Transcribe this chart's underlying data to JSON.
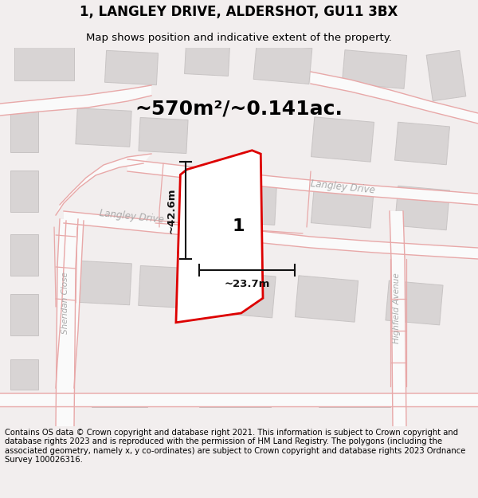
{
  "title": "1, LANGLEY DRIVE, ALDERSHOT, GU11 3BX",
  "subtitle": "Map shows position and indicative extent of the property.",
  "footer": "Contains OS data © Crown copyright and database right 2021. This information is subject to Crown copyright and database rights 2023 and is reproduced with the permission of HM Land Registry. The polygons (including the associated geometry, namely x, y co-ordinates) are subject to Crown copyright and database rights 2023 Ordnance Survey 100026316.",
  "area_label": "~570m²/~0.141ac.",
  "width_label": "~23.7m",
  "height_label": "~42.6m",
  "plot_number": "1",
  "bg_color": "#f2eeee",
  "map_bg": "#f7f4f4",
  "road_color": "#e8a8a8",
  "road_fill": "#fafafa",
  "building_color": "#d8d4d4",
  "building_edge": "#c8c4c4",
  "property_color": "#dd0000",
  "property_fill": "#ffffff",
  "dim_color": "#111111",
  "title_fontsize": 12,
  "subtitle_fontsize": 9.5,
  "footer_fontsize": 7.2,
  "area_fontsize": 18,
  "dim_fontsize": 9.5,
  "plot_num_fontsize": 16,
  "road_label_color": "#aaaaaa",
  "road_label_size": 8.5
}
